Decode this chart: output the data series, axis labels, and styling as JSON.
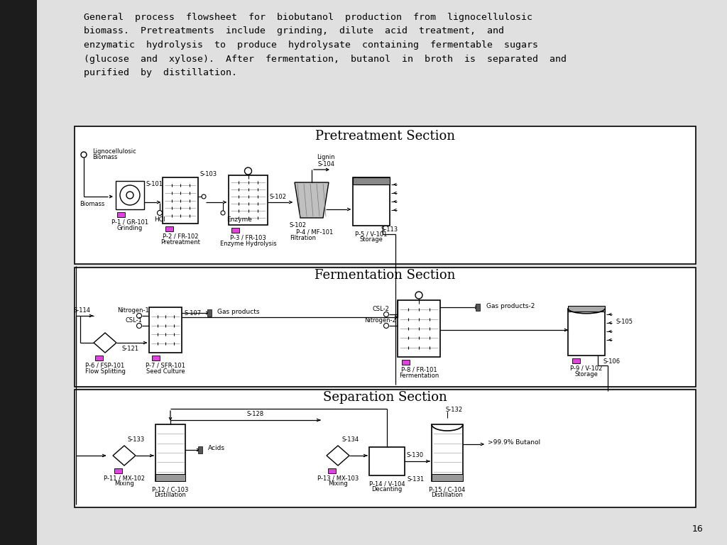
{
  "bg_color": "#d8d8d8",
  "left_bar_color": "#1a1a1a",
  "content_bg": "#e8e8e8",
  "panel_bg": "#ffffff",
  "pump_color": "#dd44dd",
  "dark_gray": "#666666",
  "light_gray": "#aaaaaa",
  "filter_gray": "#c0c0c0"
}
